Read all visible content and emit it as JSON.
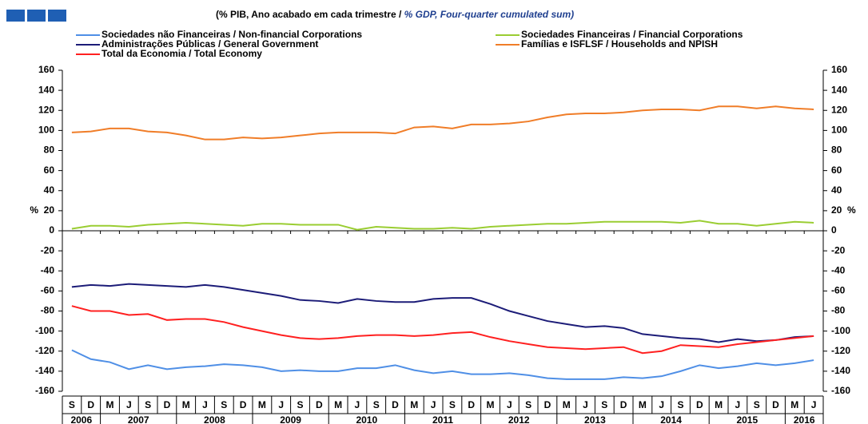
{
  "chart_data": {
    "type": "line",
    "title": "(% PIB, Ano acabado em cada trimestre  /",
    "title_en": "% GDP, Four-quarter cumulated sum)",
    "y_unit": "%",
    "categories": [
      "S",
      "D",
      "M",
      "J",
      "S",
      "D",
      "M",
      "J",
      "S",
      "D",
      "M",
      "J",
      "S",
      "D",
      "M",
      "J",
      "S",
      "D",
      "M",
      "J",
      "S",
      "D",
      "M",
      "J",
      "S",
      "D",
      "M",
      "J",
      "S",
      "D",
      "M",
      "J",
      "S",
      "D",
      "M",
      "J",
      "S",
      "D",
      "M",
      "J"
    ],
    "years": [
      "2006",
      "2007",
      "2008",
      "2009",
      "2010",
      "2011",
      "2012",
      "2013",
      "2014",
      "2015",
      "2016"
    ],
    "ylim": [
      -160,
      160
    ],
    "yticks": [
      -160,
      -140,
      -120,
      -100,
      -80,
      -60,
      -40,
      -20,
      0,
      20,
      40,
      60,
      80,
      100,
      120,
      140,
      160
    ],
    "series": [
      {
        "name": "Sociedades não Financeiras / Non-financial Corporations",
        "color": "#4f8fe6",
        "values": [
          -119,
          -128,
          -131,
          -138,
          -134,
          -138,
          -136,
          -135,
          -133,
          -134,
          -136,
          -140,
          -139,
          -140,
          -140,
          -137,
          -137,
          -134,
          -139,
          -142,
          -140,
          -143,
          -143,
          -142,
          -144,
          -147,
          -148,
          -148,
          -148,
          -146,
          -147,
          -145,
          -140,
          -134,
          -137,
          -135,
          -132,
          -134,
          -132,
          -129
        ]
      },
      {
        "name": "Sociedades Financeiras / Financial Corporations",
        "color": "#9acd32",
        "values": [
          2,
          5,
          5,
          4,
          6,
          7,
          8,
          7,
          6,
          5,
          7,
          7,
          6,
          6,
          6,
          1,
          4,
          3,
          2,
          2,
          3,
          2,
          4,
          5,
          6,
          7,
          7,
          8,
          9,
          9,
          9,
          9,
          8,
          10,
          7,
          7,
          5,
          7,
          9,
          8
        ]
      },
      {
        "name": "Administrações Públicas / General Government",
        "color": "#1c1c78",
        "values": [
          -56,
          -54,
          -55,
          -53,
          -54,
          -55,
          -56,
          -54,
          -56,
          -59,
          -62,
          -65,
          -69,
          -70,
          -72,
          -68,
          -70,
          -71,
          -71,
          -68,
          -67,
          -67,
          -73,
          -80,
          -85,
          -90,
          -93,
          -96,
          -95,
          -97,
          -103,
          -105,
          -107,
          -108,
          -111,
          -108,
          -110,
          -109,
          -106,
          -105
        ]
      },
      {
        "name": "Famílias e ISFLSF / Households and NPISH",
        "color": "#f07d28",
        "values": [
          98,
          99,
          102,
          102,
          99,
          98,
          95,
          91,
          91,
          93,
          92,
          93,
          95,
          97,
          98,
          98,
          98,
          97,
          103,
          104,
          102,
          106,
          106,
          107,
          109,
          113,
          116,
          117,
          117,
          118,
          120,
          121,
          121,
          120,
          124,
          124,
          122,
          124,
          122,
          121
        ]
      },
      {
        "name": "Total da Economia / Total Economy",
        "color": "#ff2020",
        "values": [
          -75,
          -80,
          -80,
          -84,
          -83,
          -89,
          -88,
          -88,
          -91,
          -96,
          -100,
          -104,
          -107,
          -108,
          -107,
          -105,
          -104,
          -104,
          -105,
          -104,
          -102,
          -101,
          -106,
          -110,
          -113,
          -116,
          -117,
          -118,
          -117,
          -116,
          -122,
          -120,
          -114,
          -115,
          -116,
          -113,
          -111,
          -109,
          -107,
          -105
        ]
      }
    ]
  }
}
